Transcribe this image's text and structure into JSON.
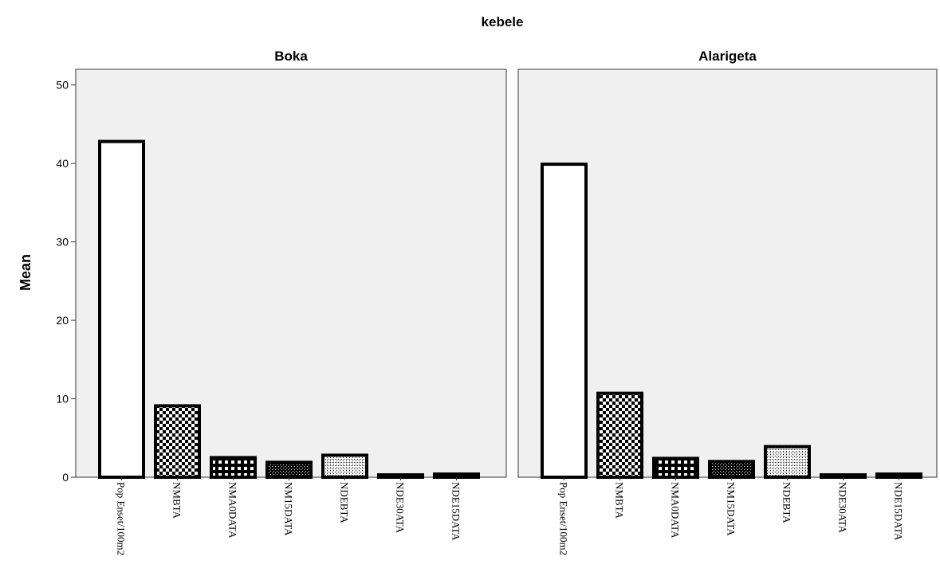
{
  "chart_data": {
    "type": "bar",
    "title": "kebele",
    "ylabel": "Mean",
    "ylim": [
      0,
      52
    ],
    "yticks": [
      "0",
      "10",
      "20",
      "30",
      "40",
      "50"
    ],
    "grid": false,
    "categories": [
      "Pop Enset/100m2",
      "NMBTA",
      "NMA0DATA",
      "NM15DATA",
      "NDEBTA",
      "NDE30ATA",
      "NDE15DATA"
    ],
    "patterns": [
      "none",
      "checker",
      "grid",
      "fine-dots",
      "crosshatch",
      "none",
      "none"
    ],
    "colors": {
      "panel_bg": "#f0f0f0",
      "bar_fill": "#ffffff",
      "bar_stroke": "#000000"
    },
    "panels": [
      {
        "name": "Boka",
        "values": [
          42.8,
          9.1,
          2.5,
          1.9,
          2.8,
          0.3,
          0.4
        ]
      },
      {
        "name": "Alarigeta",
        "values": [
          39.9,
          10.7,
          2.4,
          2.0,
          3.9,
          0.3,
          0.4
        ]
      }
    ]
  }
}
